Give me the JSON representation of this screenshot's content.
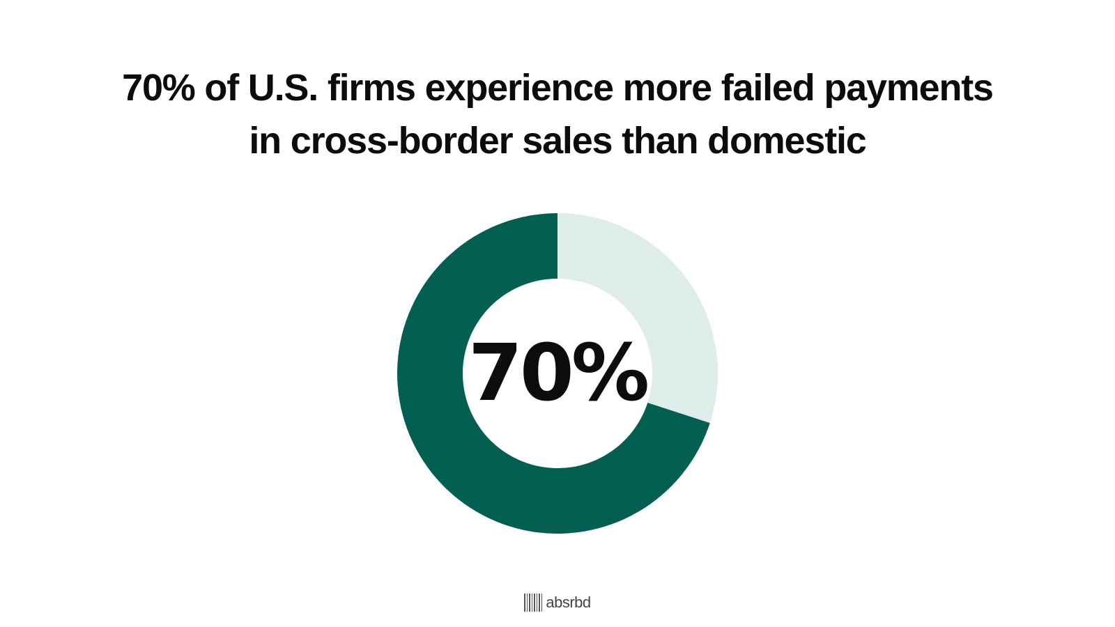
{
  "slide": {
    "title_lines": [
      "70% of U.S. firms experience more failed payments",
      "in cross-border sales than domestic"
    ]
  },
  "chart_data": {
    "type": "pie",
    "style": "donut",
    "center_label": "70%",
    "slices": [
      {
        "value": 70,
        "color": "#035f52"
      },
      {
        "value": 30,
        "color": "#deecea"
      }
    ]
  },
  "brand": {
    "icon": "barcode-icon",
    "name": "absrbd"
  }
}
